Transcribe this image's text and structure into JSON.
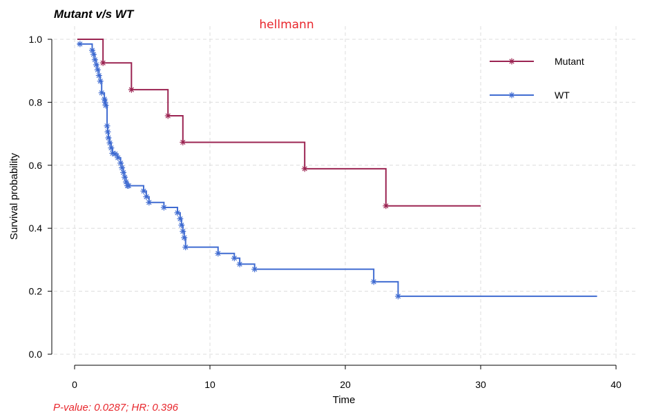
{
  "chart_data": {
    "type": "line",
    "title": "Mutant v/s WT",
    "subtitle": "hellmann",
    "xlabel": "Time",
    "ylabel": "Survival probability",
    "xlim": [
      0,
      40
    ],
    "ylim": [
      0,
      1
    ],
    "xticks": [
      0,
      10,
      20,
      30,
      40
    ],
    "yticks": [
      0.0,
      0.2,
      0.4,
      0.6,
      0.8,
      1.0
    ],
    "xtick_labels": [
      "0",
      "10",
      "20",
      "30",
      "40"
    ],
    "ytick_labels": [
      "0.0",
      "0.2",
      "0.4",
      "0.6",
      "0.8",
      "1.0"
    ],
    "grid": true,
    "legend_position": "top-right",
    "footnote": "P-value: 0.0287; HR: 0.396",
    "series": [
      {
        "name": "Mutant",
        "color": "#9b2351",
        "marker": "asterisk",
        "step_x": [
          0.2,
          2.1,
          4.2,
          6.9,
          8.0,
          17.0,
          23.0,
          30.0
        ],
        "step_y": [
          1.0,
          0.925,
          0.84,
          0.757,
          0.673,
          0.589,
          0.471,
          0.471
        ],
        "censor_x": [
          2.1,
          4.2,
          6.9,
          8.0,
          17.0,
          23.0
        ],
        "censor_y": [
          0.925,
          0.84,
          0.757,
          0.673,
          0.589,
          0.471
        ]
      },
      {
        "name": "WT",
        "color": "#3f6bd1",
        "marker": "asterisk",
        "step_x": [
          0.2,
          0.4,
          1.3,
          1.4,
          1.5,
          1.6,
          1.7,
          1.8,
          1.9,
          2.0,
          2.2,
          2.3,
          2.4,
          2.45,
          2.5,
          2.6,
          2.7,
          2.8,
          3.0,
          3.2,
          3.4,
          3.5,
          3.6,
          3.7,
          3.8,
          3.9,
          4.0,
          5.1,
          5.3,
          5.5,
          6.6,
          7.6,
          7.8,
          7.9,
          8.0,
          8.1,
          8.2,
          10.6,
          11.8,
          12.2,
          13.3,
          22.1,
          23.9,
          38.6
        ],
        "step_y": [
          0.985,
          0.985,
          0.965,
          0.952,
          0.935,
          0.919,
          0.903,
          0.885,
          0.867,
          0.83,
          0.81,
          0.79,
          0.725,
          0.706,
          0.687,
          0.671,
          0.655,
          0.638,
          0.636,
          0.624,
          0.607,
          0.592,
          0.577,
          0.562,
          0.547,
          0.535,
          0.535,
          0.518,
          0.5,
          0.482,
          0.466,
          0.449,
          0.43,
          0.41,
          0.39,
          0.37,
          0.34,
          0.32,
          0.305,
          0.286,
          0.27,
          0.23,
          0.184,
          0.184
        ],
        "censor_x": [
          0.4,
          1.3,
          1.4,
          1.5,
          1.6,
          1.7,
          1.8,
          1.9,
          2.0,
          2.2,
          2.25,
          2.3,
          2.4,
          2.45,
          2.5,
          2.6,
          2.7,
          2.8,
          3.0,
          3.2,
          3.4,
          3.5,
          3.6,
          3.7,
          3.8,
          3.9,
          4.0,
          5.1,
          5.3,
          5.5,
          6.6,
          7.6,
          7.8,
          7.9,
          8.0,
          8.1,
          8.2,
          10.6,
          11.8,
          12.2,
          13.3,
          22.1,
          23.9
        ],
        "censor_y": [
          0.985,
          0.965,
          0.952,
          0.935,
          0.919,
          0.903,
          0.885,
          0.867,
          0.83,
          0.81,
          0.8,
          0.79,
          0.725,
          0.706,
          0.687,
          0.671,
          0.655,
          0.638,
          0.636,
          0.624,
          0.607,
          0.592,
          0.577,
          0.562,
          0.547,
          0.535,
          0.535,
          0.518,
          0.5,
          0.482,
          0.466,
          0.449,
          0.43,
          0.41,
          0.39,
          0.37,
          0.34,
          0.32,
          0.305,
          0.286,
          0.27,
          0.23,
          0.184
        ]
      }
    ]
  },
  "colors": {
    "subtitle": "#e8262c",
    "footnote": "#e8262c",
    "grid": "#dcdcdc"
  }
}
